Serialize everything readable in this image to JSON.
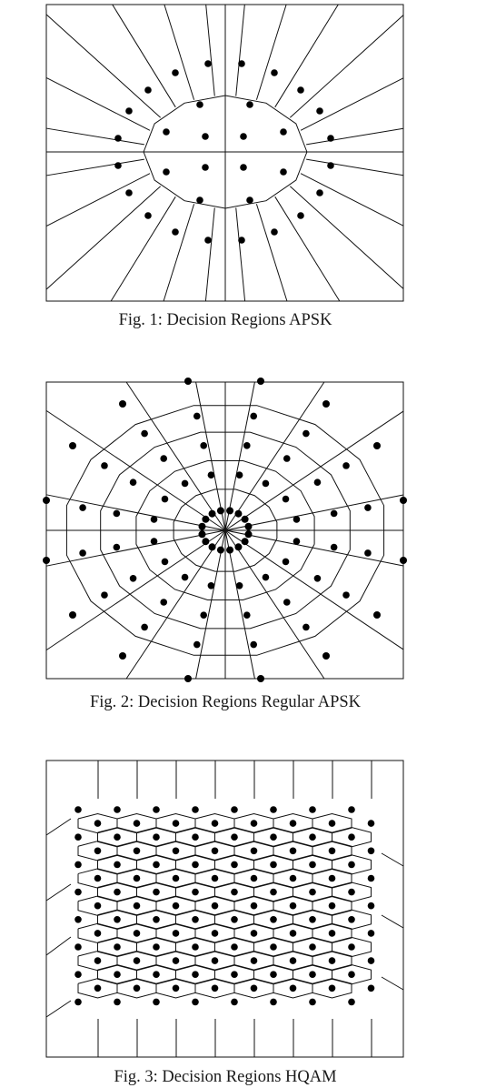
{
  "figures": [
    {
      "caption": "Fig. 1: Decision Regions APSK"
    },
    {
      "caption": "Fig. 2: Decision Regions Regular APSK"
    },
    {
      "caption": "Fig. 3: Decision Regions HQAM"
    }
  ]
}
